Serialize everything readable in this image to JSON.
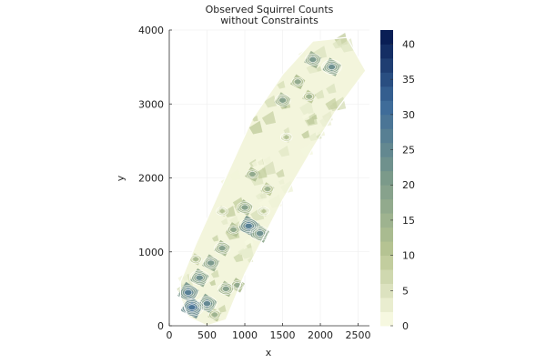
{
  "chart_data": {
    "type": "heatmap",
    "title_lines": [
      "Observed Squirrel Counts",
      "without Constraints"
    ],
    "xlabel": "x",
    "ylabel": "y",
    "xlim": [
      0,
      2650
    ],
    "ylim": [
      0,
      4000
    ],
    "x_ticks": [
      0,
      500,
      1000,
      1500,
      2000,
      2500
    ],
    "y_ticks": [
      0,
      1000,
      2000,
      3000,
      4000
    ],
    "x_tick_labels": [
      "0",
      "500",
      "1000",
      "1500",
      "2000",
      "2500"
    ],
    "y_tick_labels": [
      "0",
      "1000",
      "2000",
      "3000",
      "4000"
    ],
    "colorbar": {
      "min": 0,
      "max": 42,
      "ticks": [
        0,
        5,
        10,
        15,
        20,
        25,
        30,
        35,
        40
      ],
      "tick_labels": [
        "0",
        "5",
        "10",
        "15",
        "20",
        "25",
        "30",
        "35",
        "40"
      ],
      "colors": [
        "#fcfde8",
        "#b8c592",
        "#7b9a8a",
        "#3c6a9a",
        "#04164e"
      ]
    },
    "grid": true,
    "region_outline": [
      [
        150,
        380
      ],
      [
        250,
        120
      ],
      [
        500,
        0
      ],
      [
        750,
        80
      ],
      [
        1000,
        700
      ],
      [
        1500,
        1700
      ],
      [
        1900,
        2400
      ],
      [
        2200,
        2900
      ],
      [
        2600,
        3450
      ],
      [
        2350,
        3900
      ],
      [
        1900,
        3850
      ],
      [
        1500,
        3400
      ],
      [
        1100,
        2800
      ],
      [
        700,
        1900
      ],
      [
        350,
        1100
      ],
      [
        150,
        600
      ]
    ],
    "high_count_cells": [
      {
        "x": 1900,
        "y": 3600,
        "value": 16
      },
      {
        "x": 2150,
        "y": 3500,
        "value": 18
      },
      {
        "x": 1700,
        "y": 3300,
        "value": 12
      },
      {
        "x": 1500,
        "y": 3050,
        "value": 14
      },
      {
        "x": 1850,
        "y": 3100,
        "value": 10
      },
      {
        "x": 1100,
        "y": 2050,
        "value": 12
      },
      {
        "x": 1300,
        "y": 1850,
        "value": 10
      },
      {
        "x": 1000,
        "y": 1600,
        "value": 14
      },
      {
        "x": 1050,
        "y": 1350,
        "value": 22
      },
      {
        "x": 1200,
        "y": 1250,
        "value": 18
      },
      {
        "x": 850,
        "y": 1300,
        "value": 12
      },
      {
        "x": 700,
        "y": 1050,
        "value": 14
      },
      {
        "x": 550,
        "y": 850,
        "value": 16
      },
      {
        "x": 400,
        "y": 650,
        "value": 18
      },
      {
        "x": 250,
        "y": 450,
        "value": 22
      },
      {
        "x": 300,
        "y": 250,
        "value": 24
      },
      {
        "x": 500,
        "y": 300,
        "value": 20
      },
      {
        "x": 750,
        "y": 500,
        "value": 14
      },
      {
        "x": 900,
        "y": 550,
        "value": 12
      },
      {
        "x": 600,
        "y": 150,
        "value": 10
      },
      {
        "x": 1550,
        "y": 2550,
        "value": 6
      },
      {
        "x": 700,
        "y": 1550,
        "value": 6
      },
      {
        "x": 1250,
        "y": 1550,
        "value": 5
      },
      {
        "x": 350,
        "y": 900,
        "value": 8
      }
    ]
  }
}
